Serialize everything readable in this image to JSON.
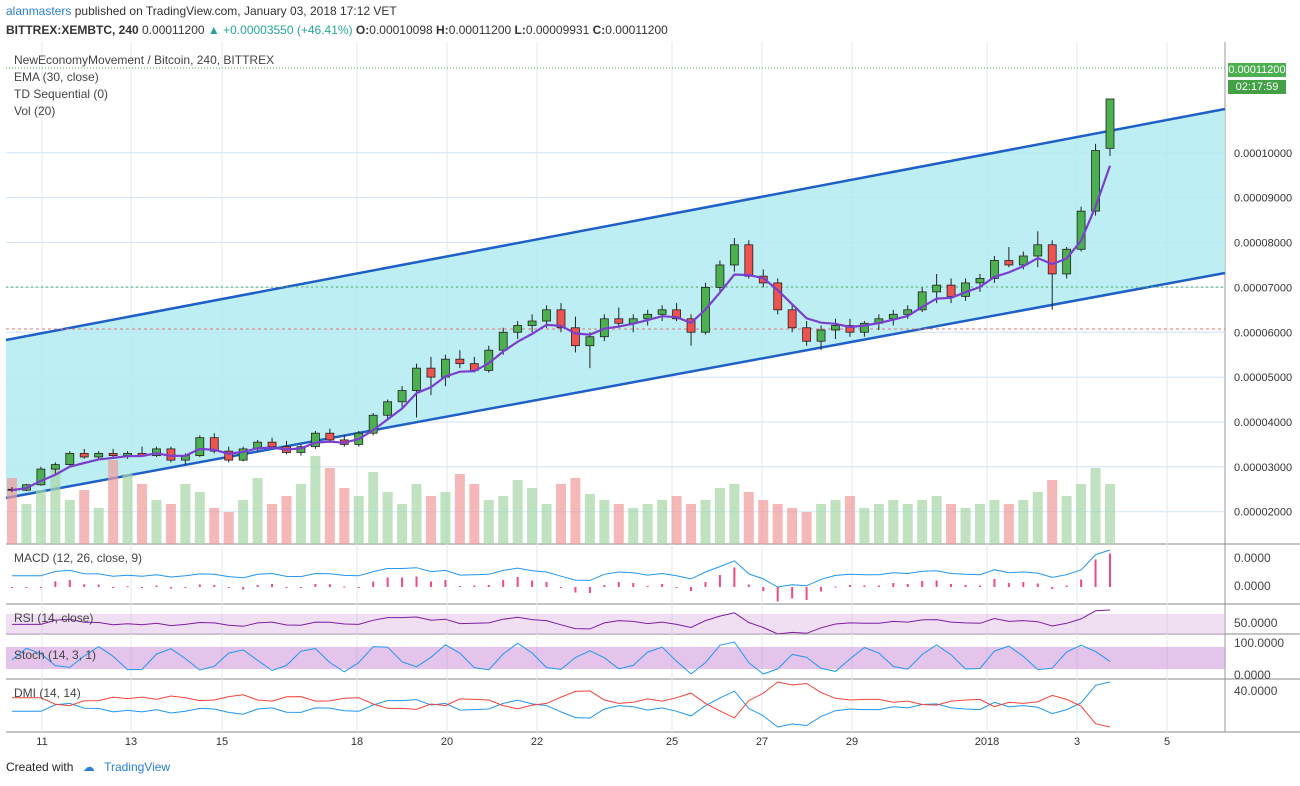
{
  "header": {
    "user": "alanmasters",
    "published_text": "published on TradingView.com, January 03, 2018 17:12 VET",
    "symbol": "BITTREX:XEMBTC, 240",
    "last": "0.00011200",
    "change": "+0.00003550 (+46.41%)",
    "o_label": "O:",
    "o": "0.00010098",
    "h_label": "H:",
    "h": "0.00011200",
    "l_label": "L:",
    "l": "0.00009931",
    "c_label": "C:",
    "c": "0.00011200"
  },
  "legend": {
    "title": "NewEconomyMovement / Bitcoin, 240, BITTREX",
    "ema": "EMA (30, close)",
    "td": "TD Sequential (0)",
    "vol": "Vol (20)"
  },
  "price_tag": {
    "value": "0.00011200",
    "countdown": "02:17:59"
  },
  "panes": {
    "macd": "MACD (12, 26, close, 9)",
    "macd_ticks": [
      "0.0000",
      "0.0000"
    ],
    "rsi": "RSI (14, close)",
    "rsi_tick": "50.0000",
    "stoch": "Stoch (14, 3, 1)",
    "stoch_ticks": [
      "100.0000",
      "0.0000"
    ],
    "dmi": "DMI (14, 14)",
    "dmi_tick": "40.0000"
  },
  "footer": {
    "created": "Created with",
    "brand": "TradingView"
  },
  "colors": {
    "up": "#4caf50",
    "down": "#ef5350",
    "channel": "#1e5fc8",
    "channel_fill": "#b2ebf2",
    "ema": "#7b3fd0"
  },
  "chart_data": {
    "type": "candlestick",
    "x_ticks": [
      "11",
      "13",
      "15",
      "18",
      "20",
      "22",
      "25",
      "27",
      "29",
      "2018",
      "3",
      "5"
    ],
    "y_ticks": [
      "0.00011200",
      "0.00010000",
      "0.00009000",
      "0.00008000",
      "0.00007000",
      "0.00006000",
      "0.00005000",
      "0.00004000",
      "0.00003000",
      "0.00002000"
    ],
    "ylim": [
      1.28e-05,
      0.0001247
    ],
    "candles": [
      [
        2.5e-05,
        2.55e-05,
        2.44e-05,
        2.48e-05
      ],
      [
        2.48e-05,
        2.62e-05,
        2.46e-05,
        2.6e-05
      ],
      [
        2.6e-05,
        3e-05,
        2.58e-05,
        2.95e-05
      ],
      [
        2.95e-05,
        3.1e-05,
        2.85e-05,
        3.05e-05
      ],
      [
        3.05e-05,
        3.35e-05,
        3e-05,
        3.3e-05
      ],
      [
        3.3e-05,
        3.4e-05,
        3.18e-05,
        3.22e-05
      ],
      [
        3.22e-05,
        3.35e-05,
        3.15e-05,
        3.3e-05
      ],
      [
        3.3e-05,
        3.4e-05,
        3.2e-05,
        3.25e-05
      ],
      [
        3.25e-05,
        3.35e-05,
        3.18e-05,
        3.3e-05
      ],
      [
        3.3e-05,
        3.45e-05,
        3.22e-05,
        3.25e-05
      ],
      [
        3.25e-05,
        3.45e-05,
        3.22e-05,
        3.4e-05
      ],
      [
        3.4e-05,
        3.45e-05,
        3.1e-05,
        3.15e-05
      ],
      [
        3.15e-05,
        3.3e-05,
        3.05e-05,
        3.25e-05
      ],
      [
        3.25e-05,
        3.7e-05,
        3.22e-05,
        3.65e-05
      ],
      [
        3.65e-05,
        3.75e-05,
        3.3e-05,
        3.35e-05
      ],
      [
        3.35e-05,
        3.45e-05,
        3.1e-05,
        3.15e-05
      ],
      [
        3.15e-05,
        3.45e-05,
        3.12e-05,
        3.4e-05
      ],
      [
        3.4e-05,
        3.6e-05,
        3.35e-05,
        3.55e-05
      ],
      [
        3.55e-05,
        3.65e-05,
        3.4e-05,
        3.45e-05
      ],
      [
        3.45e-05,
        3.58e-05,
        3.28e-05,
        3.32e-05
      ],
      [
        3.32e-05,
        3.5e-05,
        3.25e-05,
        3.45e-05
      ],
      [
        3.45e-05,
        3.8e-05,
        3.4e-05,
        3.75e-05
      ],
      [
        3.75e-05,
        3.85e-05,
        3.55e-05,
        3.6e-05
      ],
      [
        3.6e-05,
        3.7e-05,
        3.45e-05,
        3.5e-05
      ],
      [
        3.5e-05,
        3.8e-05,
        3.45e-05,
        3.75e-05
      ],
      [
        3.75e-05,
        4.2e-05,
        3.7e-05,
        4.15e-05
      ],
      [
        4.15e-05,
        4.5e-05,
        4.05e-05,
        4.45e-05
      ],
      [
        4.45e-05,
        4.8e-05,
        4.3e-05,
        4.7e-05
      ],
      [
        4.7e-05,
        5.3e-05,
        4.1e-05,
        5.2e-05
      ],
      [
        5.2e-05,
        5.45e-05,
        4.6e-05,
        5e-05
      ],
      [
        5e-05,
        5.5e-05,
        4.8e-05,
        5.4e-05
      ],
      [
        5.4e-05,
        5.6e-05,
        5.2e-05,
        5.3e-05
      ],
      [
        5.3e-05,
        5.45e-05,
        5.1e-05,
        5.15e-05
      ],
      [
        5.15e-05,
        5.7e-05,
        5.1e-05,
        5.6e-05
      ],
      [
        5.6e-05,
        6.1e-05,
        5.5e-05,
        6e-05
      ],
      [
        6e-05,
        6.25e-05,
        5.85e-05,
        6.15e-05
      ],
      [
        6.15e-05,
        6.4e-05,
        6e-05,
        6.25e-05
      ],
      [
        6.25e-05,
        6.6e-05,
        6.1e-05,
        6.5e-05
      ],
      [
        6.5e-05,
        6.65e-05,
        6e-05,
        6.1e-05
      ],
      [
        6.1e-05,
        6.35e-05,
        5.55e-05,
        5.7e-05
      ],
      [
        5.7e-05,
        6e-05,
        5.2e-05,
        5.9e-05
      ],
      [
        5.9e-05,
        6.4e-05,
        5.8e-05,
        6.3e-05
      ],
      [
        6.3e-05,
        6.55e-05,
        6.1e-05,
        6.2e-05
      ],
      [
        6.2e-05,
        6.4e-05,
        6e-05,
        6.3e-05
      ],
      [
        6.3e-05,
        6.5e-05,
        6.15e-05,
        6.4e-05
      ],
      [
        6.4e-05,
        6.6e-05,
        6.25e-05,
        6.5e-05
      ],
      [
        6.5e-05,
        6.65e-05,
        6.25e-05,
        6.3e-05
      ],
      [
        6.3e-05,
        6.4e-05,
        5.7e-05,
        6e-05
      ],
      [
        6e-05,
        7.1e-05,
        5.95e-05,
        7e-05
      ],
      [
        7e-05,
        7.6e-05,
        6.9e-05,
        7.5e-05
      ],
      [
        7.5e-05,
        8.1e-05,
        7.35e-05,
        7.95e-05
      ],
      [
        7.95e-05,
        8.05e-05,
        7.2e-05,
        7.25e-05
      ],
      [
        7.25e-05,
        7.4e-05,
        7e-05,
        7.1e-05
      ],
      [
        7.1e-05,
        7.2e-05,
        6.4e-05,
        6.5e-05
      ],
      [
        6.5e-05,
        6.65e-05,
        6e-05,
        6.1e-05
      ],
      [
        6.1e-05,
        6.25e-05,
        5.7e-05,
        5.8e-05
      ],
      [
        5.8e-05,
        6.15e-05,
        5.6e-05,
        6.05e-05
      ],
      [
        6.05e-05,
        6.3e-05,
        5.85e-05,
        6.15e-05
      ],
      [
        6.15e-05,
        6.3e-05,
        5.9e-05,
        6e-05
      ],
      [
        6e-05,
        6.25e-05,
        5.9e-05,
        6.2e-05
      ],
      [
        6.2e-05,
        6.4e-05,
        6.05e-05,
        6.3e-05
      ],
      [
        6.3e-05,
        6.5e-05,
        6.15e-05,
        6.4e-05
      ],
      [
        6.4e-05,
        6.6e-05,
        6.3e-05,
        6.5e-05
      ],
      [
        6.5e-05,
        7e-05,
        6.45e-05,
        6.9e-05
      ],
      [
        6.9e-05,
        7.3e-05,
        6.65e-05,
        7.05e-05
      ],
      [
        7.05e-05,
        7.2e-05,
        6.65e-05,
        6.8e-05
      ],
      [
        6.8e-05,
        7.2e-05,
        6.7e-05,
        7.1e-05
      ],
      [
        7.1e-05,
        7.3e-05,
        6.9e-05,
        7.2e-05
      ],
      [
        7.2e-05,
        7.7e-05,
        7.1e-05,
        7.6e-05
      ],
      [
        7.6e-05,
        7.9e-05,
        7.45e-05,
        7.5e-05
      ],
      [
        7.5e-05,
        7.8e-05,
        7.4e-05,
        7.7e-05
      ],
      [
        7.7e-05,
        8.25e-05,
        7.45e-05,
        7.95e-05
      ],
      [
        7.95e-05,
        8.05e-05,
        6.5e-05,
        7.3e-05
      ],
      [
        7.3e-05,
        7.9e-05,
        7.2e-05,
        7.85e-05
      ],
      [
        7.85e-05,
        8.8e-05,
        7.8e-05,
        8.7e-05
      ],
      [
        8.7e-05,
        0.000102,
        8.6e-05,
        0.0001005
      ],
      [
        0.000101,
        0.000112,
        9.93e-05,
        0.000112
      ]
    ],
    "volumes": [
      0.33,
      0.2,
      0.27,
      0.38,
      0.22,
      0.27,
      0.18,
      0.42,
      0.35,
      0.3,
      0.22,
      0.2,
      0.3,
      0.26,
      0.18,
      0.16,
      0.22,
      0.33,
      0.2,
      0.24,
      0.3,
      0.44,
      0.38,
      0.28,
      0.24,
      0.36,
      0.26,
      0.2,
      0.3,
      0.24,
      0.26,
      0.35,
      0.3,
      0.22,
      0.24,
      0.32,
      0.28,
      0.2,
      0.3,
      0.33,
      0.25,
      0.22,
      0.2,
      0.18,
      0.2,
      0.22,
      0.24,
      0.2,
      0.22,
      0.28,
      0.3,
      0.26,
      0.22,
      0.2,
      0.18,
      0.16,
      0.2,
      0.22,
      0.24,
      0.18,
      0.2,
      0.22,
      0.2,
      0.22,
      0.24,
      0.2,
      0.18,
      0.2,
      0.22,
      0.2,
      0.22,
      0.26,
      0.32,
      0.24,
      0.3,
      0.38,
      0.3
    ]
  }
}
